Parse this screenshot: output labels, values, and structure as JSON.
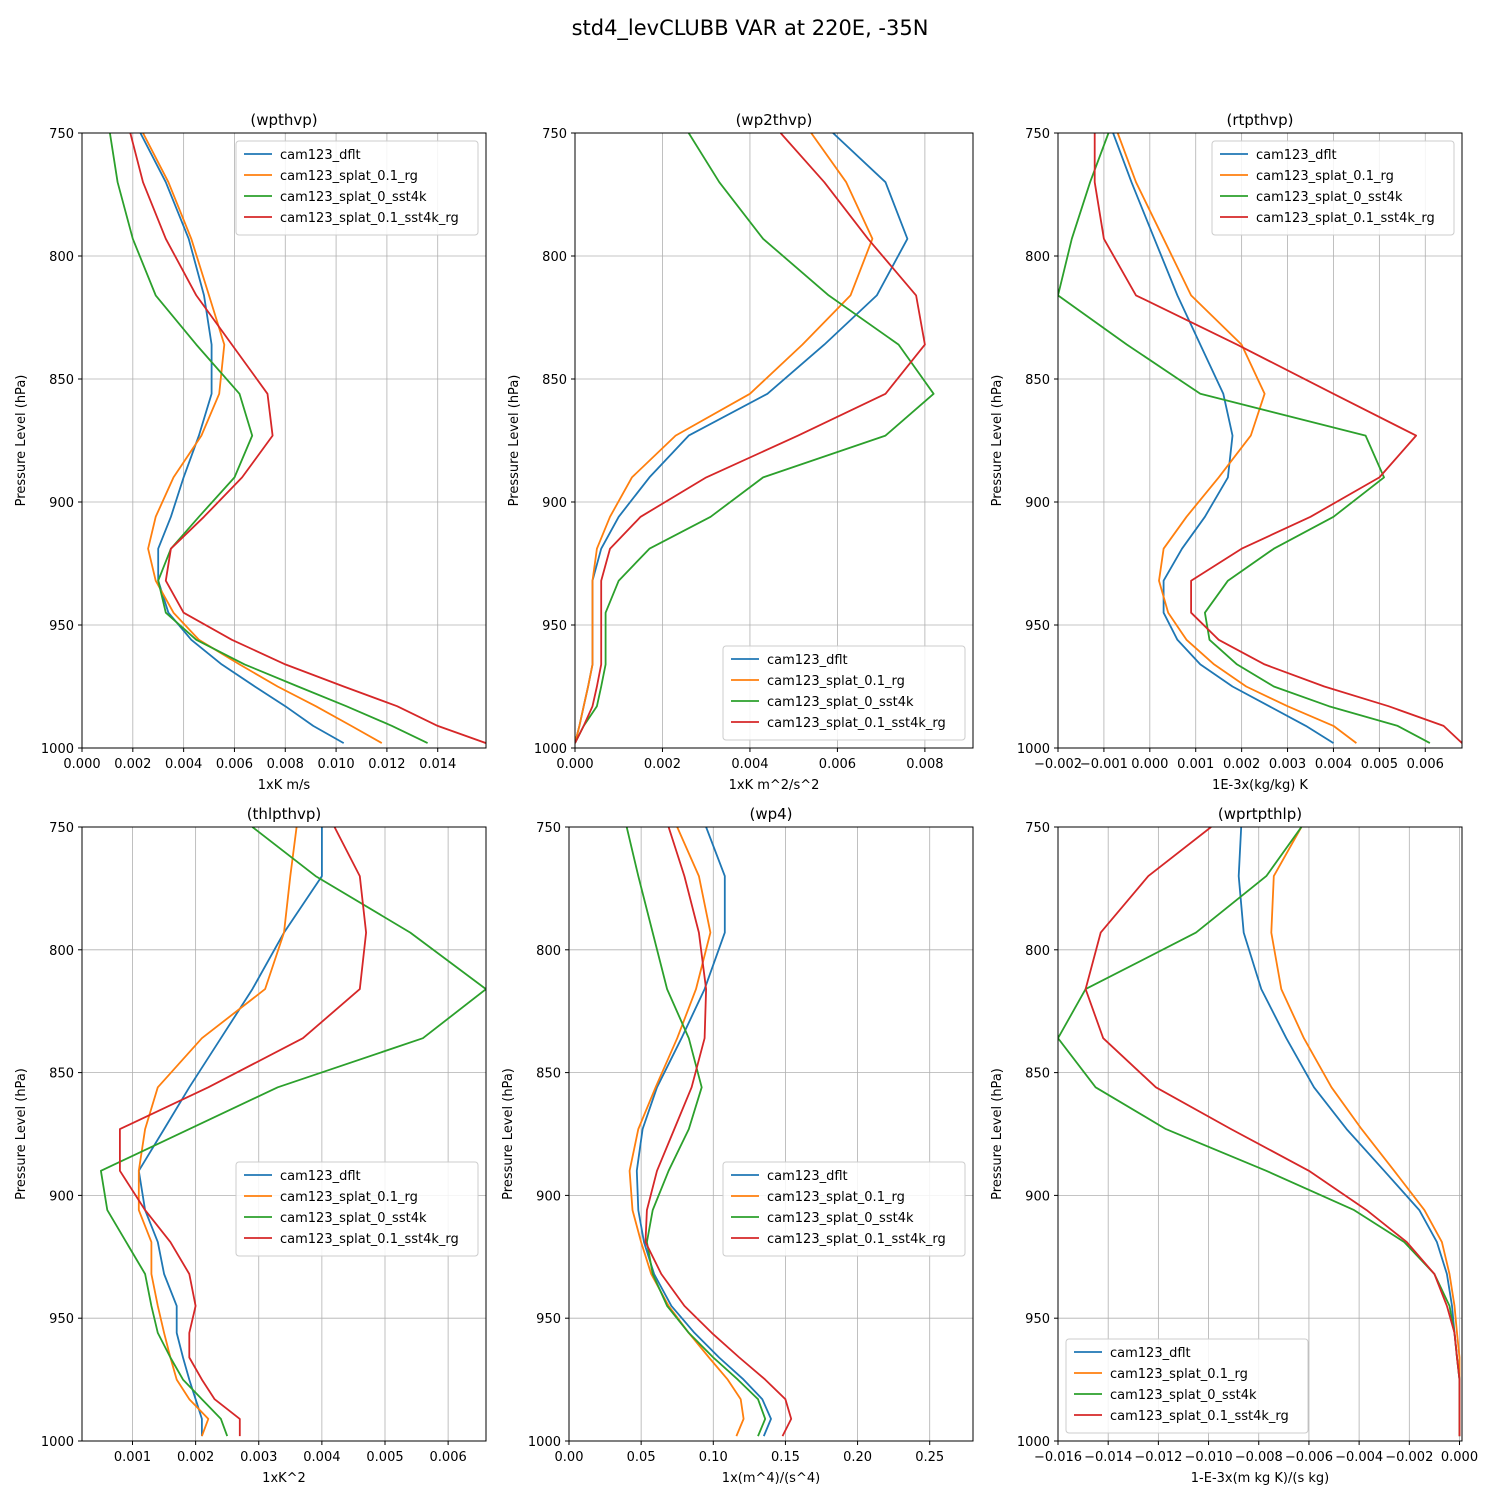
{
  "figure": {
    "title": "std4_levCLUBB VAR at 220E, -35N"
  },
  "colors": {
    "blue": "#1f77b4",
    "orange": "#ff7f0e",
    "green": "#2ca02c",
    "red": "#d62728"
  },
  "chart_data": [
    {
      "type": "line",
      "title": "(wpthvp)",
      "xlabel": "1xK m/s",
      "ylabel": "Pressure Level (hPa)",
      "xlim": [
        0,
        0.0159
      ],
      "ylim": [
        750,
        1000
      ],
      "xticks": [
        0,
        0.002,
        0.004,
        0.006,
        0.008,
        0.01,
        0.012,
        0.014
      ],
      "xtick_labels": [
        "0.000",
        "0.002",
        "0.004",
        "0.006",
        "0.008",
        "0.010",
        "0.012",
        "0.014"
      ],
      "yticks": [
        750,
        800,
        850,
        900,
        950,
        1000
      ],
      "ytick_labels": [
        "750",
        "800",
        "850",
        "900",
        "950",
        "1000"
      ],
      "grid": true,
      "legend": "upper-right",
      "levels": [
        750,
        770,
        793,
        816,
        836,
        856,
        873,
        890,
        906,
        919,
        932,
        945,
        956,
        966,
        975,
        983,
        991,
        998
      ],
      "series": [
        {
          "name": "cam123_dflt",
          "color": "blue",
          "values": [
            0.0023,
            0.0033,
            0.0042,
            0.0048,
            0.0051,
            0.0051,
            0.0046,
            0.004,
            0.0035,
            0.003,
            0.003,
            0.0034,
            0.0043,
            0.0055,
            0.0068,
            0.008,
            0.0091,
            0.0103
          ]
        },
        {
          "name": "cam123_splat_0.1_rg",
          "color": "orange",
          "values": [
            0.0024,
            0.0034,
            0.0043,
            0.005,
            0.0056,
            0.0054,
            0.0047,
            0.0036,
            0.0029,
            0.0026,
            0.0029,
            0.0036,
            0.0046,
            0.0062,
            0.0077,
            0.0092,
            0.0106,
            0.0118
          ]
        },
        {
          "name": "cam123_splat_0_sst4k",
          "color": "green",
          "values": [
            0.0011,
            0.0014,
            0.002,
            0.0029,
            0.0045,
            0.0062,
            0.0067,
            0.006,
            0.0046,
            0.0035,
            0.003,
            0.0033,
            0.0045,
            0.0064,
            0.0085,
            0.0104,
            0.0122,
            0.0136
          ]
        },
        {
          "name": "cam123_splat_0.1_sst4k_rg",
          "color": "red",
          "values": [
            0.0019,
            0.0024,
            0.0033,
            0.0045,
            0.0059,
            0.0073,
            0.0075,
            0.0063,
            0.0048,
            0.0035,
            0.0033,
            0.004,
            0.0059,
            0.008,
            0.0103,
            0.0124,
            0.014,
            0.0159
          ]
        }
      ]
    },
    {
      "type": "line",
      "title": "(wp2thvp)",
      "xlabel": "1xK m^2/s^2",
      "ylabel": "Pressure Level (hPa)",
      "xlim": [
        0,
        0.0091
      ],
      "ylim": [
        750,
        1000
      ],
      "xticks": [
        0,
        0.002,
        0.004,
        0.006,
        0.008
      ],
      "xtick_labels": [
        "0.000",
        "0.002",
        "0.004",
        "0.006",
        "0.008"
      ],
      "yticks": [
        750,
        800,
        850,
        900,
        950,
        1000
      ],
      "ytick_labels": [
        "750",
        "800",
        "850",
        "900",
        "950",
        "1000"
      ],
      "grid": true,
      "legend": "lower-right",
      "levels": [
        750,
        770,
        793,
        816,
        836,
        856,
        873,
        890,
        906,
        919,
        932,
        945,
        956,
        966,
        975,
        983,
        991,
        998
      ],
      "series": [
        {
          "name": "cam123_dflt",
          "color": "blue",
          "values": [
            0.0059,
            0.0071,
            0.0076,
            0.0069,
            0.0057,
            0.0044,
            0.0026,
            0.0017,
            0.001,
            0.0006,
            0.0004,
            0.0004,
            0.0004,
            0.0004,
            0.0003,
            0.0002,
            0.0001,
            0.0
          ]
        },
        {
          "name": "cam123_splat_0.1_rg",
          "color": "orange",
          "values": [
            0.0054,
            0.0062,
            0.0068,
            0.0063,
            0.0052,
            0.004,
            0.0023,
            0.0013,
            0.0008,
            0.0005,
            0.0004,
            0.0004,
            0.0004,
            0.0004,
            0.0003,
            0.0002,
            0.0001,
            0.0
          ]
        },
        {
          "name": "cam123_splat_0_sst4k",
          "color": "green",
          "values": [
            0.0026,
            0.0033,
            0.0043,
            0.0058,
            0.0074,
            0.0082,
            0.0071,
            0.0043,
            0.0031,
            0.0017,
            0.001,
            0.0007,
            0.0007,
            0.0007,
            0.0006,
            0.0005,
            0.0002,
            0.0
          ]
        },
        {
          "name": "cam123_splat_0.1_sst4k_rg",
          "color": "red",
          "values": [
            0.0047,
            0.0057,
            0.0067,
            0.0078,
            0.008,
            0.0071,
            0.0051,
            0.003,
            0.0015,
            0.0008,
            0.0006,
            0.0006,
            0.0006,
            0.0006,
            0.0005,
            0.0004,
            0.0002,
            0.0
          ]
        }
      ]
    },
    {
      "type": "line",
      "title": "(rtpthvp)",
      "xlabel": "1E-3x(kg/kg) K",
      "ylabel": "Pressure Level (hPa)",
      "xlim": [
        -0.002,
        0.0068
      ],
      "ylim": [
        750,
        1000
      ],
      "xticks": [
        -0.002,
        -0.001,
        0.0,
        0.001,
        0.002,
        0.003,
        0.004,
        0.005,
        0.006
      ],
      "xtick_labels": [
        "−0.002",
        "−0.001",
        "0.000",
        "0.001",
        "0.002",
        "0.003",
        "0.004",
        "0.005",
        "0.006"
      ],
      "yticks": [
        750,
        800,
        850,
        900,
        950,
        1000
      ],
      "ytick_labels": [
        "750",
        "800",
        "850",
        "900",
        "950",
        "1000"
      ],
      "grid": true,
      "legend": "upper-right",
      "levels": [
        750,
        770,
        793,
        816,
        836,
        856,
        873,
        890,
        906,
        919,
        932,
        945,
        956,
        966,
        975,
        983,
        991,
        998
      ],
      "series": [
        {
          "name": "cam123_dflt",
          "color": "blue",
          "values": [
            -0.0008,
            -0.0004,
            0.0001,
            0.0006,
            0.0011,
            0.0016,
            0.0018,
            0.0017,
            0.0012,
            0.0007,
            0.0003,
            0.0003,
            0.0006,
            0.0011,
            0.0018,
            0.0026,
            0.0034,
            0.004
          ]
        },
        {
          "name": "cam123_splat_0.1_rg",
          "color": "orange",
          "values": [
            -0.0007,
            -0.0003,
            0.0003,
            0.0009,
            0.002,
            0.0025,
            0.0022,
            0.0015,
            0.0008,
            0.0003,
            0.0002,
            0.0004,
            0.0008,
            0.0014,
            0.0021,
            0.003,
            0.004,
            0.0045
          ]
        },
        {
          "name": "cam123_splat_0_sst4k",
          "color": "green",
          "values": [
            -0.0009,
            -0.0013,
            -0.0017,
            -0.002,
            -0.0005,
            0.0011,
            0.0047,
            0.0051,
            0.004,
            0.0027,
            0.0017,
            0.0012,
            0.0013,
            0.0019,
            0.0027,
            0.0039,
            0.0054,
            0.0061
          ]
        },
        {
          "name": "cam123_splat_0.1_sst4k_rg",
          "color": "red",
          "values": [
            -0.0012,
            -0.0012,
            -0.001,
            -0.0003,
            0.0019,
            0.004,
            0.0058,
            0.005,
            0.0035,
            0.002,
            0.0009,
            0.0009,
            0.0015,
            0.0025,
            0.0038,
            0.0052,
            0.0064,
            0.0068
          ]
        }
      ]
    },
    {
      "type": "line",
      "title": "(thlpthvp)",
      "xlabel": "1xK^2",
      "ylabel": "Pressure Level (hPa)",
      "xlim": [
        0.0002,
        0.0066
      ],
      "ylim": [
        750,
        1000
      ],
      "xticks": [
        0.001,
        0.002,
        0.003,
        0.004,
        0.005,
        0.006
      ],
      "xtick_labels": [
        "0.001",
        "0.002",
        "0.003",
        "0.004",
        "0.005",
        "0.006"
      ],
      "yticks": [
        750,
        800,
        850,
        900,
        950,
        1000
      ],
      "ytick_labels": [
        "750",
        "800",
        "850",
        "900",
        "950",
        "1000"
      ],
      "grid": true,
      "legend": "right",
      "levels": [
        750,
        770,
        793,
        816,
        836,
        856,
        873,
        890,
        906,
        919,
        932,
        945,
        956,
        966,
        975,
        983,
        991,
        998
      ],
      "series": [
        {
          "name": "cam123_dflt",
          "color": "blue",
          "values": [
            0.004,
            0.004,
            0.0034,
            0.0029,
            0.0024,
            0.0019,
            0.0015,
            0.0011,
            0.0012,
            0.0014,
            0.0015,
            0.0017,
            0.0017,
            0.0018,
            0.0019,
            0.002,
            0.0021,
            0.0021
          ]
        },
        {
          "name": "cam123_splat_0.1_rg",
          "color": "orange",
          "values": [
            0.0036,
            0.0035,
            0.0034,
            0.0031,
            0.0021,
            0.0014,
            0.0012,
            0.0011,
            0.0011,
            0.0013,
            0.0013,
            0.0014,
            0.0015,
            0.0016,
            0.0017,
            0.0019,
            0.0022,
            0.0021
          ]
        },
        {
          "name": "cam123_splat_0_sst4k",
          "color": "green",
          "values": [
            0.0029,
            0.0039,
            0.0054,
            0.0066,
            0.0056,
            0.0033,
            0.0019,
            0.0005,
            0.0006,
            0.0009,
            0.0012,
            0.0013,
            0.0014,
            0.0016,
            0.0018,
            0.0021,
            0.0024,
            0.0025
          ]
        },
        {
          "name": "cam123_splat_0.1_sst4k_rg",
          "color": "red",
          "values": [
            0.0042,
            0.0046,
            0.0047,
            0.0046,
            0.0037,
            0.0022,
            0.0008,
            0.0008,
            0.0012,
            0.0016,
            0.0019,
            0.002,
            0.0019,
            0.0019,
            0.0021,
            0.0023,
            0.0027,
            0.0027
          ]
        }
      ]
    },
    {
      "type": "line",
      "title": "(wp4)",
      "xlabel": "1x(m^4)/(s^4)",
      "ylabel": "Pressure Level (hPa)",
      "xlim": [
        0,
        0.28
      ],
      "ylim": [
        750,
        1000
      ],
      "xticks": [
        0,
        0.05,
        0.1,
        0.15,
        0.2,
        0.25
      ],
      "xtick_labels": [
        "0.00",
        "0.05",
        "0.10",
        "0.15",
        "0.20",
        "0.25"
      ],
      "yticks": [
        750,
        800,
        850,
        900,
        950,
        1000
      ],
      "ytick_labels": [
        "750",
        "800",
        "850",
        "900",
        "950",
        "1000"
      ],
      "grid": true,
      "legend": "right",
      "levels": [
        750,
        770,
        793,
        816,
        836,
        856,
        873,
        890,
        906,
        919,
        932,
        945,
        956,
        966,
        975,
        983,
        991,
        998
      ],
      "series": [
        {
          "name": "cam123_dflt",
          "color": "blue",
          "values": [
            0.095,
            0.108,
            0.108,
            0.094,
            0.078,
            0.061,
            0.051,
            0.047,
            0.048,
            0.052,
            0.059,
            0.071,
            0.087,
            0.104,
            0.121,
            0.134,
            0.14,
            0.135
          ]
        },
        {
          "name": "cam123_splat_0.1_rg",
          "color": "orange",
          "values": [
            0.075,
            0.09,
            0.098,
            0.088,
            0.075,
            0.06,
            0.048,
            0.042,
            0.044,
            0.05,
            0.057,
            0.069,
            0.083,
            0.097,
            0.11,
            0.119,
            0.121,
            0.116
          ]
        },
        {
          "name": "cam123_splat_0_sst4k",
          "color": "green",
          "values": [
            0.04,
            0.048,
            0.058,
            0.068,
            0.083,
            0.092,
            0.083,
            0.069,
            0.058,
            0.054,
            0.058,
            0.068,
            0.083,
            0.1,
            0.117,
            0.131,
            0.136,
            0.131
          ]
        },
        {
          "name": "cam123_splat_0.1_sst4k_rg",
          "color": "red",
          "values": [
            0.069,
            0.08,
            0.09,
            0.095,
            0.094,
            0.085,
            0.073,
            0.061,
            0.054,
            0.053,
            0.064,
            0.08,
            0.099,
            0.118,
            0.136,
            0.15,
            0.154,
            0.148
          ]
        }
      ]
    },
    {
      "type": "line",
      "title": "(wprtpthlp)",
      "xlabel": "1-E-3x(m kg K)/(s kg)",
      "ylabel": "Pressure Level (hPa)",
      "xlim": [
        -0.016,
        0.0001
      ],
      "ylim": [
        750,
        1000
      ],
      "xticks": [
        -0.016,
        -0.014,
        -0.012,
        -0.01,
        -0.008,
        -0.006,
        -0.004,
        -0.002,
        0.0
      ],
      "xtick_labels": [
        "−0.016",
        "−0.014",
        "−0.012",
        "−0.010",
        "−0.008",
        "−0.006",
        "−0.004",
        "−0.002",
        "0.000"
      ],
      "yticks": [
        750,
        800,
        850,
        900,
        950,
        1000
      ],
      "ytick_labels": [
        "750",
        "800",
        "850",
        "900",
        "950",
        "1000"
      ],
      "grid": true,
      "legend": "lower-left",
      "levels": [
        750,
        770,
        793,
        816,
        836,
        856,
        873,
        890,
        906,
        919,
        932,
        945,
        956,
        966,
        975,
        983,
        991,
        998
      ],
      "series": [
        {
          "name": "cam123_dflt",
          "color": "blue",
          "values": [
            -0.0087,
            -0.0088,
            -0.0086,
            -0.0079,
            -0.0069,
            -0.0058,
            -0.0045,
            -0.003,
            -0.0016,
            -0.0009,
            -0.0005,
            -0.0003,
            -0.0002,
            -0.0001,
            0.0,
            0.0,
            0.0,
            0.0
          ]
        },
        {
          "name": "cam123_splat_0.1_rg",
          "color": "orange",
          "values": [
            -0.0063,
            -0.0074,
            -0.0075,
            -0.0071,
            -0.0062,
            -0.0051,
            -0.0039,
            -0.0026,
            -0.0014,
            -0.0007,
            -0.0004,
            -0.0002,
            -0.0001,
            0.0,
            0.0,
            0.0,
            0.0,
            0.0
          ]
        },
        {
          "name": "cam123_splat_0_sst4k",
          "color": "green",
          "values": [
            -0.0063,
            -0.0077,
            -0.0105,
            -0.0149,
            -0.016,
            -0.0145,
            -0.0117,
            -0.0077,
            -0.0042,
            -0.0022,
            -0.001,
            -0.0004,
            -0.0002,
            -0.0001,
            0.0,
            0.0,
            0.0,
            0.0
          ]
        },
        {
          "name": "cam123_splat_0.1_sst4k_rg",
          "color": "red",
          "values": [
            -0.0099,
            -0.0124,
            -0.0143,
            -0.0149,
            -0.0142,
            -0.0121,
            -0.0091,
            -0.006,
            -0.0037,
            -0.0021,
            -0.001,
            -0.0005,
            -0.0002,
            -0.0001,
            0.0,
            0.0,
            0.0,
            0.0
          ]
        }
      ]
    }
  ]
}
